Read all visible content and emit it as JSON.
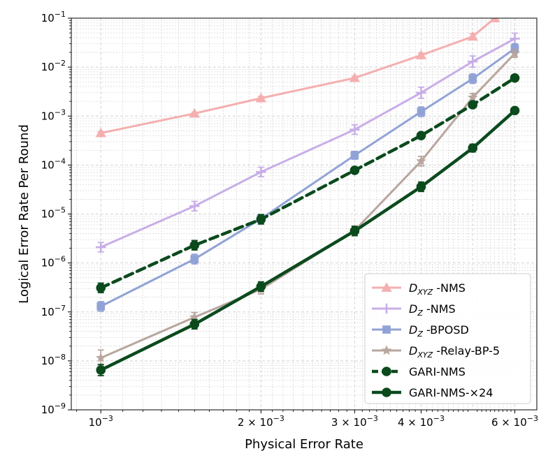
{
  "chart_data": {
    "type": "line",
    "xscale": "log",
    "yscale": "log",
    "xlabel": "Physical Error Rate",
    "ylabel": "Logical Error Rate Per Round",
    "xlim": [
      0.00088,
      0.0066
    ],
    "ylim": [
      1e-09,
      0.1
    ],
    "grid": true,
    "legend_position": "lower-right",
    "x_ticks": [
      {
        "value": 0.001,
        "mant": "",
        "exp": "−3",
        "base": "10"
      },
      {
        "value": 0.002,
        "mant": "2 × ",
        "exp": "−3",
        "base": "10"
      },
      {
        "value": 0.003,
        "mant": "3 × ",
        "exp": "−3",
        "base": "10"
      },
      {
        "value": 0.004,
        "mant": "4 × ",
        "exp": "−3",
        "base": "10"
      },
      {
        "value": 0.006,
        "mant": "6 × ",
        "exp": "−3",
        "base": "10"
      }
    ],
    "y_ticks": [
      {
        "value": 1e-09,
        "exp": "−9",
        "base": "10"
      },
      {
        "value": 1e-08,
        "exp": "−8",
        "base": "10"
      },
      {
        "value": 1e-07,
        "exp": "−7",
        "base": "10"
      },
      {
        "value": 1e-06,
        "exp": "−6",
        "base": "10"
      },
      {
        "value": 1e-05,
        "exp": "−5",
        "base": "10"
      },
      {
        "value": 0.0001,
        "exp": "−4",
        "base": "10"
      },
      {
        "value": 0.001,
        "exp": "−3",
        "base": "10"
      },
      {
        "value": 0.01,
        "exp": "−2",
        "base": "10"
      },
      {
        "value": 0.1,
        "exp": "−1",
        "base": "10"
      }
    ],
    "series": [
      {
        "name_main": "D",
        "name_sub": "XYZ",
        "name_rest": " -NMS",
        "color": "#f4a7a7",
        "marker": "triangle",
        "dashed": false,
        "width": 3,
        "opacity": 0.9,
        "x": [
          0.001,
          0.0015,
          0.002,
          0.003,
          0.004,
          0.005,
          0.0055
        ],
        "y": [
          0.00045,
          0.00113,
          0.00232,
          0.006,
          0.0175,
          0.042,
          0.1
        ],
        "err": [
          1.06,
          1.06,
          1.08,
          1.08,
          1.1,
          1.15,
          1.0
        ]
      },
      {
        "name_main": "D",
        "name_sub": "Z",
        "name_rest": " -NMS",
        "color": "#c3a6e6",
        "marker": "plus",
        "dashed": false,
        "width": 3,
        "opacity": 0.9,
        "x": [
          0.001,
          0.0015,
          0.002,
          0.003,
          0.004,
          0.005,
          0.006
        ],
        "y": [
          2.1e-06,
          1.45e-05,
          7.2e-05,
          0.00053,
          0.003,
          0.013,
          0.038
        ],
        "err": [
          1.25,
          1.25,
          1.25,
          1.25,
          1.3,
          1.3,
          1.3
        ]
      },
      {
        "name_main": "D",
        "name_sub": "Z",
        "name_rest": " -BPOSD",
        "color": "#8c9ed4",
        "marker": "square",
        "dashed": false,
        "width": 3,
        "opacity": 0.95,
        "x": [
          0.001,
          0.0015,
          0.002,
          0.003,
          0.004,
          0.005,
          0.006
        ],
        "y": [
          1.3e-07,
          1.2e-06,
          8e-06,
          0.000158,
          0.00123,
          0.0058,
          0.024
        ],
        "err": [
          1.25,
          1.25,
          1.2,
          1.2,
          1.25,
          1.25,
          1.25
        ]
      },
      {
        "name_main": "D",
        "name_sub": "XYZ",
        "name_rest": " -Relay-BP-5",
        "color": "#b5a29a",
        "marker": "star",
        "dashed": false,
        "width": 3,
        "opacity": 0.95,
        "x": [
          0.001,
          0.0015,
          0.002,
          0.003,
          0.004,
          0.005,
          0.006
        ],
        "y": [
          1.15e-08,
          7.8e-08,
          2.9e-07,
          4.6e-06,
          0.00012,
          0.0024,
          0.019
        ],
        "err": [
          1.45,
          1.25,
          1.25,
          1.2,
          1.25,
          1.2,
          1.2
        ]
      },
      {
        "name_main": "GARI-NMS",
        "name_sub": "",
        "name_rest": "",
        "color": "#0b4a1d",
        "marker": "circle",
        "dashed": true,
        "width": 4.5,
        "opacity": 1,
        "x": [
          0.001,
          0.0015,
          0.002,
          0.003,
          0.004,
          0.005,
          0.006
        ],
        "y": [
          3.1e-07,
          2.3e-06,
          7.8e-06,
          7.8e-05,
          0.0004,
          0.0017,
          0.006
        ],
        "err": [
          1.25,
          1.25,
          1.25,
          1.0,
          1.12,
          1.08,
          1.0
        ]
      },
      {
        "name_main": "GARI-NMS-×24",
        "name_sub": "",
        "name_rest": "",
        "color": "#0b4a1d",
        "marker": "circle",
        "dashed": false,
        "width": 4.5,
        "opacity": 1,
        "x": [
          0.001,
          0.0015,
          0.002,
          0.003,
          0.004,
          0.005,
          0.006
        ],
        "y": [
          6.5e-09,
          5.6e-08,
          3.3e-07,
          4.5e-06,
          3.6e-05,
          0.000222,
          0.0013
        ],
        "err": [
          1.3,
          1.25,
          1.25,
          1.25,
          1.25,
          1.2,
          1.06
        ]
      }
    ]
  }
}
